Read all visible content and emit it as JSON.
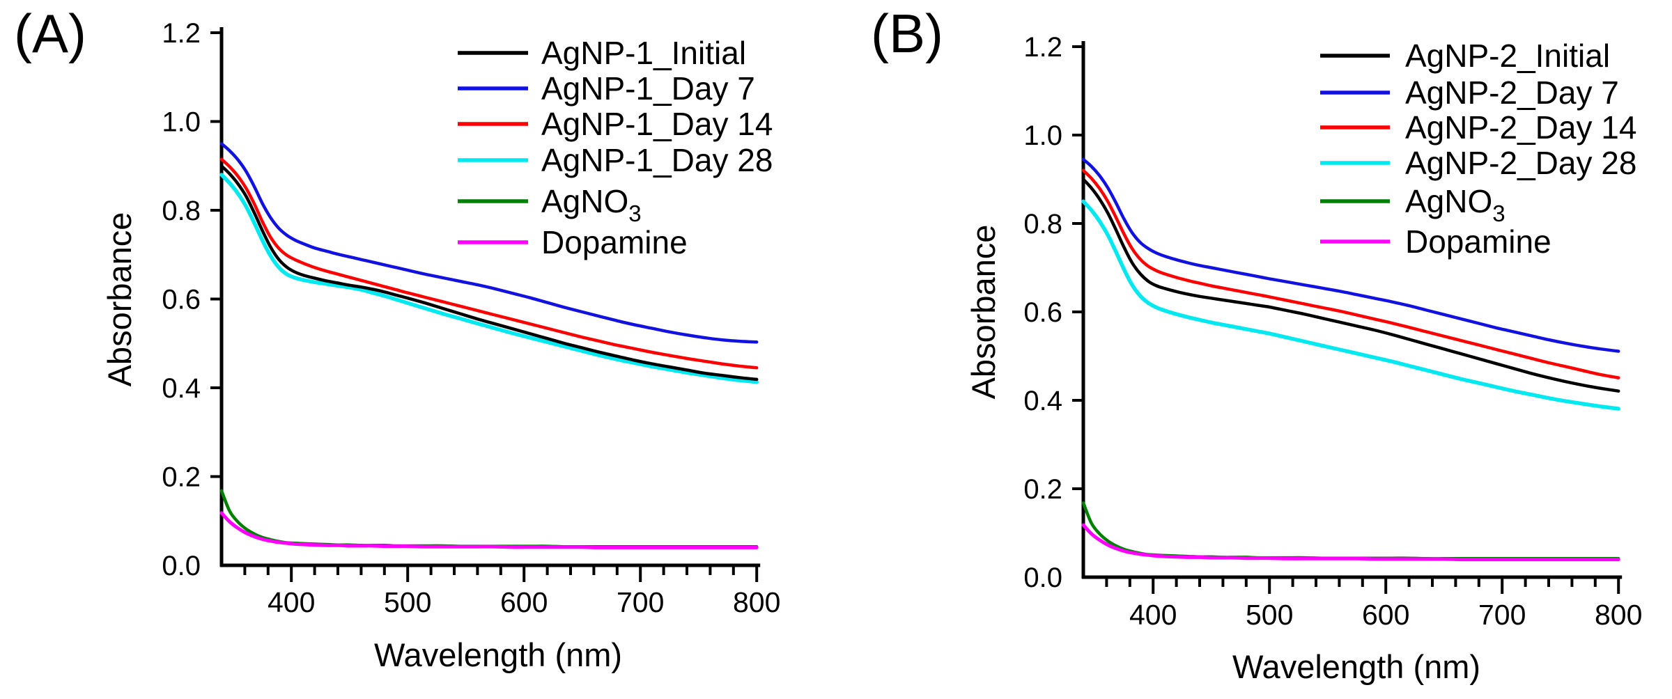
{
  "figure": {
    "panel_labels": [
      "(A)",
      "(B)"
    ]
  },
  "chart_data": [
    {
      "type": "line",
      "panel_label": "(A)",
      "title": "",
      "xlabel": "Wavelength (nm)",
      "ylabel": "Absorbance",
      "xlim": [
        340,
        800
      ],
      "ylim": [
        0.0,
        1.2
      ],
      "xticks": [
        400,
        500,
        600,
        700,
        800
      ],
      "x_minor_tick_step": 20,
      "ytick_labels": [
        "0.0",
        "0.2",
        "0.4",
        "0.6",
        "0.8",
        "1.0",
        "1.2"
      ],
      "grid": false,
      "legend_position": "top-right-inside",
      "x": [
        340,
        347,
        354,
        361,
        368,
        375,
        382,
        389,
        396,
        403,
        410,
        420,
        430,
        440,
        450,
        460,
        470,
        480,
        490,
        500,
        515,
        530,
        545,
        560,
        575,
        590,
        605,
        620,
        635,
        650,
        665,
        680,
        695,
        710,
        725,
        740,
        755,
        770,
        785,
        800
      ],
      "series": [
        {
          "name": "AgNP-1_Initial",
          "color": "#000000",
          "values": [
            0.9,
            0.882,
            0.86,
            0.832,
            0.795,
            0.755,
            0.718,
            0.69,
            0.672,
            0.661,
            0.654,
            0.647,
            0.641,
            0.636,
            0.631,
            0.627,
            0.622,
            0.616,
            0.609,
            0.602,
            0.591,
            0.579,
            0.567,
            0.555,
            0.544,
            0.533,
            0.522,
            0.511,
            0.5,
            0.49,
            0.48,
            0.471,
            0.462,
            0.454,
            0.447,
            0.44,
            0.433,
            0.428,
            0.423,
            0.419
          ]
        },
        {
          "name": "AgNP-1_Day 7",
          "color": "#1212E0",
          "values": [
            0.95,
            0.934,
            0.914,
            0.888,
            0.854,
            0.816,
            0.784,
            0.76,
            0.744,
            0.733,
            0.725,
            0.715,
            0.708,
            0.701,
            0.695,
            0.689,
            0.683,
            0.677,
            0.671,
            0.665,
            0.656,
            0.648,
            0.64,
            0.632,
            0.623,
            0.613,
            0.603,
            0.592,
            0.581,
            0.571,
            0.561,
            0.551,
            0.542,
            0.534,
            0.526,
            0.519,
            0.513,
            0.508,
            0.505,
            0.503
          ]
        },
        {
          "name": "AgNP-1_Day 14",
          "color": "#FF0000",
          "values": [
            0.915,
            0.898,
            0.877,
            0.85,
            0.815,
            0.775,
            0.74,
            0.715,
            0.699,
            0.689,
            0.681,
            0.671,
            0.663,
            0.656,
            0.649,
            0.642,
            0.635,
            0.628,
            0.621,
            0.614,
            0.604,
            0.594,
            0.584,
            0.574,
            0.564,
            0.554,
            0.544,
            0.534,
            0.524,
            0.514,
            0.505,
            0.496,
            0.488,
            0.48,
            0.473,
            0.466,
            0.46,
            0.454,
            0.449,
            0.445
          ]
        },
        {
          "name": "AgNP-1_Day 28",
          "color": "#00E8F0",
          "values": [
            0.88,
            0.861,
            0.838,
            0.809,
            0.772,
            0.733,
            0.698,
            0.672,
            0.656,
            0.648,
            0.643,
            0.638,
            0.634,
            0.63,
            0.626,
            0.621,
            0.614,
            0.607,
            0.599,
            0.591,
            0.579,
            0.567,
            0.556,
            0.545,
            0.534,
            0.523,
            0.513,
            0.503,
            0.493,
            0.483,
            0.473,
            0.464,
            0.456,
            0.448,
            0.441,
            0.434,
            0.428,
            0.422,
            0.417,
            0.413
          ]
        },
        {
          "name": "AgNO₃",
          "color": "#008000",
          "values": [
            0.168,
            0.122,
            0.098,
            0.082,
            0.071,
            0.063,
            0.058,
            0.054,
            0.051,
            0.05,
            0.049,
            0.048,
            0.047,
            0.046,
            0.046,
            0.045,
            0.045,
            0.045,
            0.044,
            0.044,
            0.044,
            0.044,
            0.043,
            0.043,
            0.043,
            0.043,
            0.043,
            0.043,
            0.042,
            0.042,
            0.042,
            0.042,
            0.042,
            0.042,
            0.042,
            0.042,
            0.042,
            0.042,
            0.042,
            0.042
          ]
        },
        {
          "name": "Dopamine",
          "color": "#FF00FF",
          "values": [
            0.118,
            0.098,
            0.084,
            0.073,
            0.065,
            0.059,
            0.055,
            0.052,
            0.05,
            0.048,
            0.047,
            0.046,
            0.045,
            0.045,
            0.044,
            0.044,
            0.044,
            0.043,
            0.043,
            0.043,
            0.042,
            0.042,
            0.042,
            0.042,
            0.042,
            0.041,
            0.041,
            0.041,
            0.041,
            0.041,
            0.04,
            0.04,
            0.04,
            0.04,
            0.04,
            0.04,
            0.04,
            0.04,
            0.04,
            0.04
          ]
        }
      ]
    },
    {
      "type": "line",
      "panel_label": "(B)",
      "title": "",
      "xlabel": "Wavelength (nm)",
      "ylabel": "Absorbance",
      "xlim": [
        340,
        800
      ],
      "ylim": [
        0.0,
        1.2
      ],
      "xticks": [
        400,
        500,
        600,
        700,
        800
      ],
      "x_minor_tick_step": 20,
      "ytick_labels": [
        "0.0",
        "0.2",
        "0.4",
        "0.6",
        "0.8",
        "1.0",
        "1.2"
      ],
      "grid": false,
      "legend_position": "top-right-inside",
      "x": [
        340,
        347,
        354,
        361,
        368,
        375,
        382,
        389,
        396,
        403,
        410,
        420,
        430,
        440,
        450,
        460,
        470,
        480,
        490,
        500,
        515,
        530,
        545,
        560,
        575,
        590,
        605,
        620,
        635,
        650,
        665,
        680,
        695,
        710,
        725,
        740,
        755,
        770,
        785,
        800
      ],
      "series": [
        {
          "name": "AgNP-2_Initial",
          "color": "#000000",
          "values": [
            0.9,
            0.88,
            0.855,
            0.824,
            0.786,
            0.746,
            0.711,
            0.686,
            0.669,
            0.659,
            0.653,
            0.646,
            0.64,
            0.635,
            0.631,
            0.627,
            0.623,
            0.619,
            0.615,
            0.611,
            0.603,
            0.595,
            0.586,
            0.577,
            0.568,
            0.559,
            0.549,
            0.538,
            0.527,
            0.516,
            0.505,
            0.494,
            0.483,
            0.472,
            0.461,
            0.451,
            0.442,
            0.434,
            0.427,
            0.421
          ]
        },
        {
          "name": "AgNP-2_Day 7",
          "color": "#1212E0",
          "values": [
            0.945,
            0.929,
            0.908,
            0.881,
            0.847,
            0.81,
            0.779,
            0.757,
            0.743,
            0.733,
            0.726,
            0.718,
            0.711,
            0.705,
            0.7,
            0.695,
            0.69,
            0.685,
            0.68,
            0.675,
            0.668,
            0.661,
            0.654,
            0.647,
            0.639,
            0.631,
            0.623,
            0.614,
            0.604,
            0.594,
            0.584,
            0.574,
            0.564,
            0.555,
            0.546,
            0.537,
            0.529,
            0.522,
            0.516,
            0.511
          ]
        },
        {
          "name": "AgNP-2_Day 14",
          "color": "#FF0000",
          "values": [
            0.92,
            0.902,
            0.879,
            0.85,
            0.814,
            0.776,
            0.743,
            0.719,
            0.703,
            0.693,
            0.686,
            0.678,
            0.671,
            0.665,
            0.659,
            0.654,
            0.649,
            0.644,
            0.639,
            0.634,
            0.626,
            0.618,
            0.61,
            0.602,
            0.593,
            0.584,
            0.575,
            0.565,
            0.555,
            0.545,
            0.535,
            0.525,
            0.515,
            0.505,
            0.495,
            0.485,
            0.476,
            0.467,
            0.458,
            0.451
          ]
        },
        {
          "name": "AgNP-2_Day 28",
          "color": "#00E8F0",
          "values": [
            0.85,
            0.83,
            0.805,
            0.774,
            0.736,
            0.696,
            0.661,
            0.636,
            0.62,
            0.61,
            0.603,
            0.595,
            0.588,
            0.582,
            0.576,
            0.571,
            0.566,
            0.561,
            0.556,
            0.551,
            0.542,
            0.533,
            0.524,
            0.515,
            0.506,
            0.497,
            0.488,
            0.478,
            0.468,
            0.458,
            0.448,
            0.439,
            0.43,
            0.421,
            0.413,
            0.405,
            0.398,
            0.392,
            0.386,
            0.381
          ]
        },
        {
          "name": "AgNO₃",
          "color": "#008000",
          "values": [
            0.168,
            0.122,
            0.098,
            0.082,
            0.071,
            0.063,
            0.058,
            0.054,
            0.051,
            0.05,
            0.049,
            0.048,
            0.047,
            0.046,
            0.046,
            0.045,
            0.045,
            0.045,
            0.044,
            0.044,
            0.044,
            0.044,
            0.043,
            0.043,
            0.043,
            0.043,
            0.043,
            0.043,
            0.042,
            0.042,
            0.042,
            0.042,
            0.042,
            0.042,
            0.042,
            0.042,
            0.042,
            0.042,
            0.042,
            0.042
          ]
        },
        {
          "name": "Dopamine",
          "color": "#FF00FF",
          "values": [
            0.118,
            0.098,
            0.084,
            0.073,
            0.065,
            0.059,
            0.055,
            0.052,
            0.05,
            0.048,
            0.047,
            0.046,
            0.045,
            0.045,
            0.044,
            0.044,
            0.044,
            0.043,
            0.043,
            0.043,
            0.042,
            0.042,
            0.042,
            0.042,
            0.042,
            0.041,
            0.041,
            0.041,
            0.041,
            0.041,
            0.04,
            0.04,
            0.04,
            0.04,
            0.04,
            0.04,
            0.04,
            0.04,
            0.04,
            0.04
          ]
        }
      ]
    }
  ]
}
